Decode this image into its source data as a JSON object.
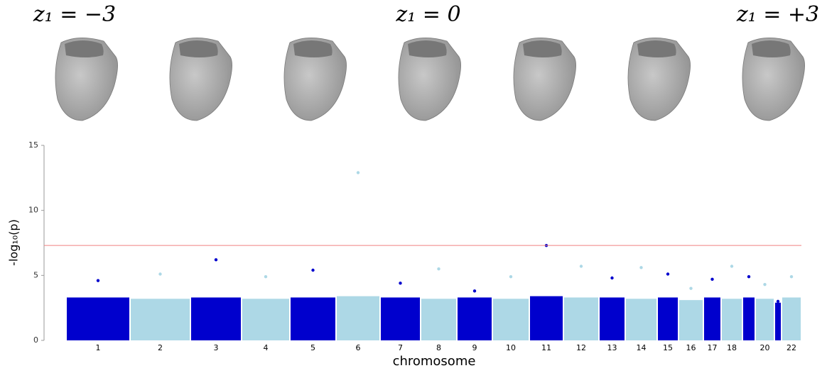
{
  "header": {
    "labels": [
      "z₁ = −3",
      "z₁ = 0",
      "z₁ = +3"
    ]
  },
  "chart_data": {
    "type": "manhattan",
    "y_label": "-log₁₀(p)",
    "x_label": "chromosome",
    "categories": [
      "1",
      "2",
      "3",
      "4",
      "5",
      "6",
      "7",
      "8",
      "9",
      "10",
      "11",
      "12",
      "13",
      "14",
      "15",
      "16",
      "17",
      "18",
      null,
      "20",
      null,
      "22"
    ],
    "series": [
      {
        "values": [
          4.6,
          5.1,
          6.2,
          4.9,
          5.4,
          12.9,
          4.4,
          5.5,
          3.8,
          4.9,
          7.3,
          5.7,
          4.8,
          5.6,
          5.1,
          4.0,
          4.7,
          5.7,
          4.9,
          4.3,
          3.0,
          4.9
        ]
      },
      {
        "values": [
          3.3,
          3.2,
          3.3,
          3.2,
          3.3,
          3.4,
          3.3,
          3.2,
          3.3,
          3.2,
          3.4,
          3.3,
          3.3,
          3.2,
          3.3,
          3.1,
          3.3,
          3.2,
          3.3,
          3.2,
          2.9,
          3.3
        ]
      }
    ],
    "colors": [
      "#0000cd",
      "#add8e6"
    ],
    "threshold": 7.3,
    "threshold_color": "#f08080",
    "ylim": [
      0,
      15
    ],
    "yticks": [
      0,
      5,
      10,
      15
    ]
  }
}
